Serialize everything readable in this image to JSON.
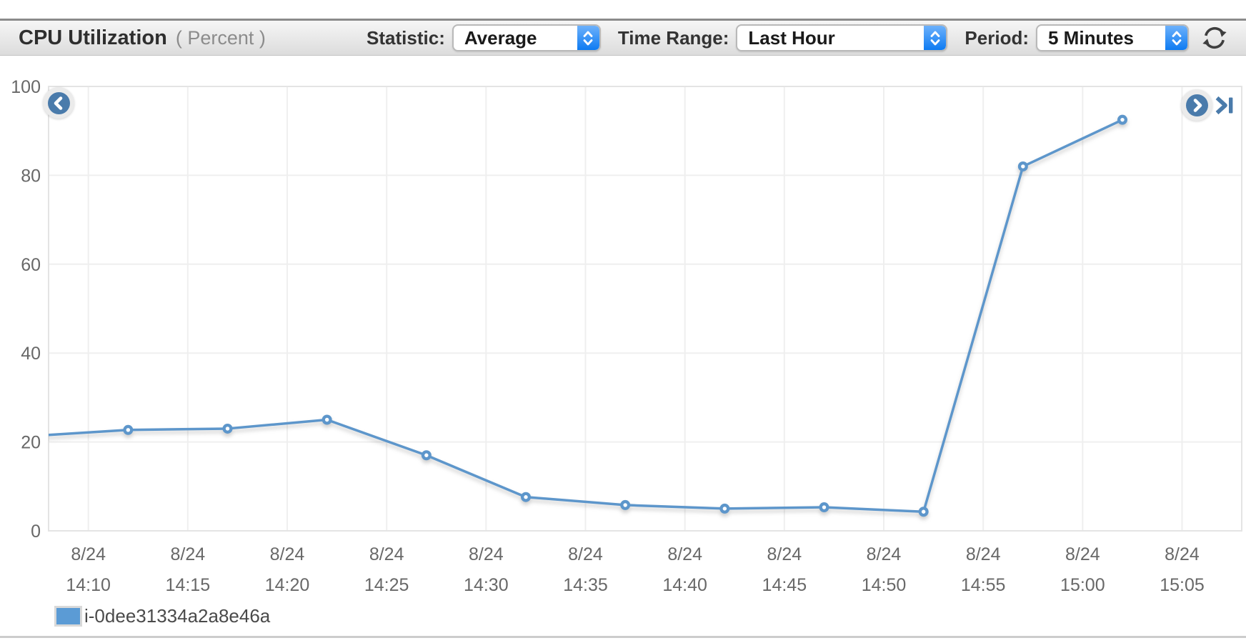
{
  "header": {
    "title": "CPU Utilization",
    "unit": "( Percent )",
    "controls": [
      {
        "label": "Statistic:",
        "value": "Average"
      },
      {
        "label": "Time Range:",
        "value": "Last Hour"
      },
      {
        "label": "Period:",
        "value": "5 Minutes"
      }
    ],
    "refresh_icon": "refresh-sync-arrows"
  },
  "nav": {
    "prev_icon": "chevron-left-circle",
    "next_icon": "chevron-right-circle",
    "skip_icon": "skip-to-latest"
  },
  "colors": {
    "line": "#5d96cb",
    "legend_swatch": "#5b9bd5",
    "nav_button": "#4a7bab",
    "grid": "#efefef",
    "plot_border": "#e4e4e4",
    "axis_text": "#686868",
    "select_cap_top": "#6db1fb",
    "select_cap_bottom": "#0d7bf2"
  },
  "chart_data": {
    "type": "line",
    "title": "CPU Utilization",
    "ylabel": "Percent",
    "ylim": [
      0,
      100
    ],
    "yticks": [
      0,
      20,
      40,
      60,
      80,
      100
    ],
    "grid": true,
    "legend_position": "bottom-left",
    "x_window": [
      "14:08",
      "15:08"
    ],
    "x_ticks": [
      {
        "date": "8/24",
        "time": "14:10"
      },
      {
        "date": "8/24",
        "time": "14:15"
      },
      {
        "date": "8/24",
        "time": "14:20"
      },
      {
        "date": "8/24",
        "time": "14:25"
      },
      {
        "date": "8/24",
        "time": "14:30"
      },
      {
        "date": "8/24",
        "time": "14:35"
      },
      {
        "date": "8/24",
        "time": "14:40"
      },
      {
        "date": "8/24",
        "time": "14:45"
      },
      {
        "date": "8/24",
        "time": "14:50"
      },
      {
        "date": "8/24",
        "time": "14:55"
      },
      {
        "date": "8/24",
        "time": "15:00"
      },
      {
        "date": "8/24",
        "time": "15:05"
      }
    ],
    "series": [
      {
        "name": "i-0dee31334a2a8e46a",
        "color": "#5d96cb",
        "points": [
          {
            "time": "14:07",
            "value": 21.3
          },
          {
            "time": "14:12",
            "value": 22.7
          },
          {
            "time": "14:17",
            "value": 23.0
          },
          {
            "time": "14:22",
            "value": 25.0
          },
          {
            "time": "14:27",
            "value": 17.0
          },
          {
            "time": "14:32",
            "value": 7.6
          },
          {
            "time": "14:37",
            "value": 5.8
          },
          {
            "time": "14:42",
            "value": 5.0
          },
          {
            "time": "14:47",
            "value": 5.3
          },
          {
            "time": "14:52",
            "value": 4.3
          },
          {
            "time": "14:57",
            "value": 82.0
          },
          {
            "time": "15:02",
            "value": 92.5
          }
        ]
      }
    ]
  }
}
